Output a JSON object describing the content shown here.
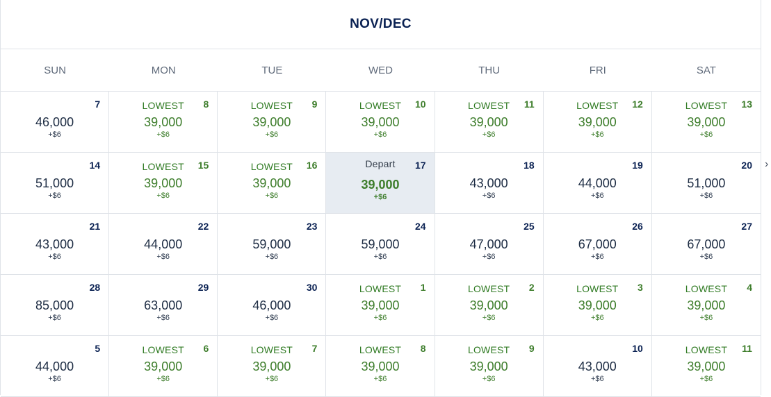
{
  "calendar": {
    "month_label": "NOV/DEC",
    "weekdays": [
      "SUN",
      "MON",
      "TUE",
      "WED",
      "THU",
      "FRI",
      "SAT"
    ],
    "weeks": [
      [
        {
          "date": "7",
          "tag": "",
          "price": "46,000",
          "fee": "+$6",
          "lowest": false,
          "selected": false
        },
        {
          "date": "8",
          "tag": "LOWEST",
          "price": "39,000",
          "fee": "+$6",
          "lowest": true,
          "selected": false
        },
        {
          "date": "9",
          "tag": "LOWEST",
          "price": "39,000",
          "fee": "+$6",
          "lowest": true,
          "selected": false
        },
        {
          "date": "10",
          "tag": "LOWEST",
          "price": "39,000",
          "fee": "+$6",
          "lowest": true,
          "selected": false
        },
        {
          "date": "11",
          "tag": "LOWEST",
          "price": "39,000",
          "fee": "+$6",
          "lowest": true,
          "selected": false
        },
        {
          "date": "12",
          "tag": "LOWEST",
          "price": "39,000",
          "fee": "+$6",
          "lowest": true,
          "selected": false
        },
        {
          "date": "13",
          "tag": "LOWEST",
          "price": "39,000",
          "fee": "+$6",
          "lowest": true,
          "selected": false
        }
      ],
      [
        {
          "date": "14",
          "tag": "",
          "price": "51,000",
          "fee": "+$6",
          "lowest": false,
          "selected": false
        },
        {
          "date": "15",
          "tag": "LOWEST",
          "price": "39,000",
          "fee": "+$6",
          "lowest": true,
          "selected": false
        },
        {
          "date": "16",
          "tag": "LOWEST",
          "price": "39,000",
          "fee": "+$6",
          "lowest": true,
          "selected": false
        },
        {
          "date": "17",
          "tag": "Depart",
          "price": "39,000",
          "fee": "+$6",
          "lowest": false,
          "selected": true
        },
        {
          "date": "18",
          "tag": "",
          "price": "43,000",
          "fee": "+$6",
          "lowest": false,
          "selected": false
        },
        {
          "date": "19",
          "tag": "",
          "price": "44,000",
          "fee": "+$6",
          "lowest": false,
          "selected": false
        },
        {
          "date": "20",
          "tag": "",
          "price": "51,000",
          "fee": "+$6",
          "lowest": false,
          "selected": false
        }
      ],
      [
        {
          "date": "21",
          "tag": "",
          "price": "43,000",
          "fee": "+$6",
          "lowest": false,
          "selected": false
        },
        {
          "date": "22",
          "tag": "",
          "price": "44,000",
          "fee": "+$6",
          "lowest": false,
          "selected": false
        },
        {
          "date": "23",
          "tag": "",
          "price": "59,000",
          "fee": "+$6",
          "lowest": false,
          "selected": false
        },
        {
          "date": "24",
          "tag": "",
          "price": "59,000",
          "fee": "+$6",
          "lowest": false,
          "selected": false
        },
        {
          "date": "25",
          "tag": "",
          "price": "47,000",
          "fee": "+$6",
          "lowest": false,
          "selected": false
        },
        {
          "date": "26",
          "tag": "",
          "price": "67,000",
          "fee": "+$6",
          "lowest": false,
          "selected": false
        },
        {
          "date": "27",
          "tag": "",
          "price": "67,000",
          "fee": "+$6",
          "lowest": false,
          "selected": false
        }
      ],
      [
        {
          "date": "28",
          "tag": "",
          "price": "85,000",
          "fee": "+$6",
          "lowest": false,
          "selected": false
        },
        {
          "date": "29",
          "tag": "",
          "price": "63,000",
          "fee": "+$6",
          "lowest": false,
          "selected": false
        },
        {
          "date": "30",
          "tag": "",
          "price": "46,000",
          "fee": "+$6",
          "lowest": false,
          "selected": false
        },
        {
          "date": "1",
          "tag": "LOWEST",
          "price": "39,000",
          "fee": "+$6",
          "lowest": true,
          "selected": false
        },
        {
          "date": "2",
          "tag": "LOWEST",
          "price": "39,000",
          "fee": "+$6",
          "lowest": true,
          "selected": false
        },
        {
          "date": "3",
          "tag": "LOWEST",
          "price": "39,000",
          "fee": "+$6",
          "lowest": true,
          "selected": false
        },
        {
          "date": "4",
          "tag": "LOWEST",
          "price": "39,000",
          "fee": "+$6",
          "lowest": true,
          "selected": false
        }
      ],
      [
        {
          "date": "5",
          "tag": "",
          "price": "44,000",
          "fee": "+$6",
          "lowest": false,
          "selected": false
        },
        {
          "date": "6",
          "tag": "LOWEST",
          "price": "39,000",
          "fee": "+$6",
          "lowest": true,
          "selected": false
        },
        {
          "date": "7",
          "tag": "LOWEST",
          "price": "39,000",
          "fee": "+$6",
          "lowest": true,
          "selected": false
        },
        {
          "date": "8",
          "tag": "LOWEST",
          "price": "39,000",
          "fee": "+$6",
          "lowest": true,
          "selected": false
        },
        {
          "date": "9",
          "tag": "LOWEST",
          "price": "39,000",
          "fee": "+$6",
          "lowest": true,
          "selected": false
        },
        {
          "date": "10",
          "tag": "",
          "price": "43,000",
          "fee": "+$6",
          "lowest": false,
          "selected": false
        },
        {
          "date": "11",
          "tag": "LOWEST",
          "price": "39,000",
          "fee": "+$6",
          "lowest": true,
          "selected": false
        }
      ]
    ]
  },
  "navigation": {
    "next_icon": "chevron-right-icon"
  },
  "colors": {
    "brand_navy": "#0b2253",
    "lowest_green": "#3d7d2b",
    "selected_bg": "#e7ecf2",
    "border": "#dfe3e8"
  }
}
